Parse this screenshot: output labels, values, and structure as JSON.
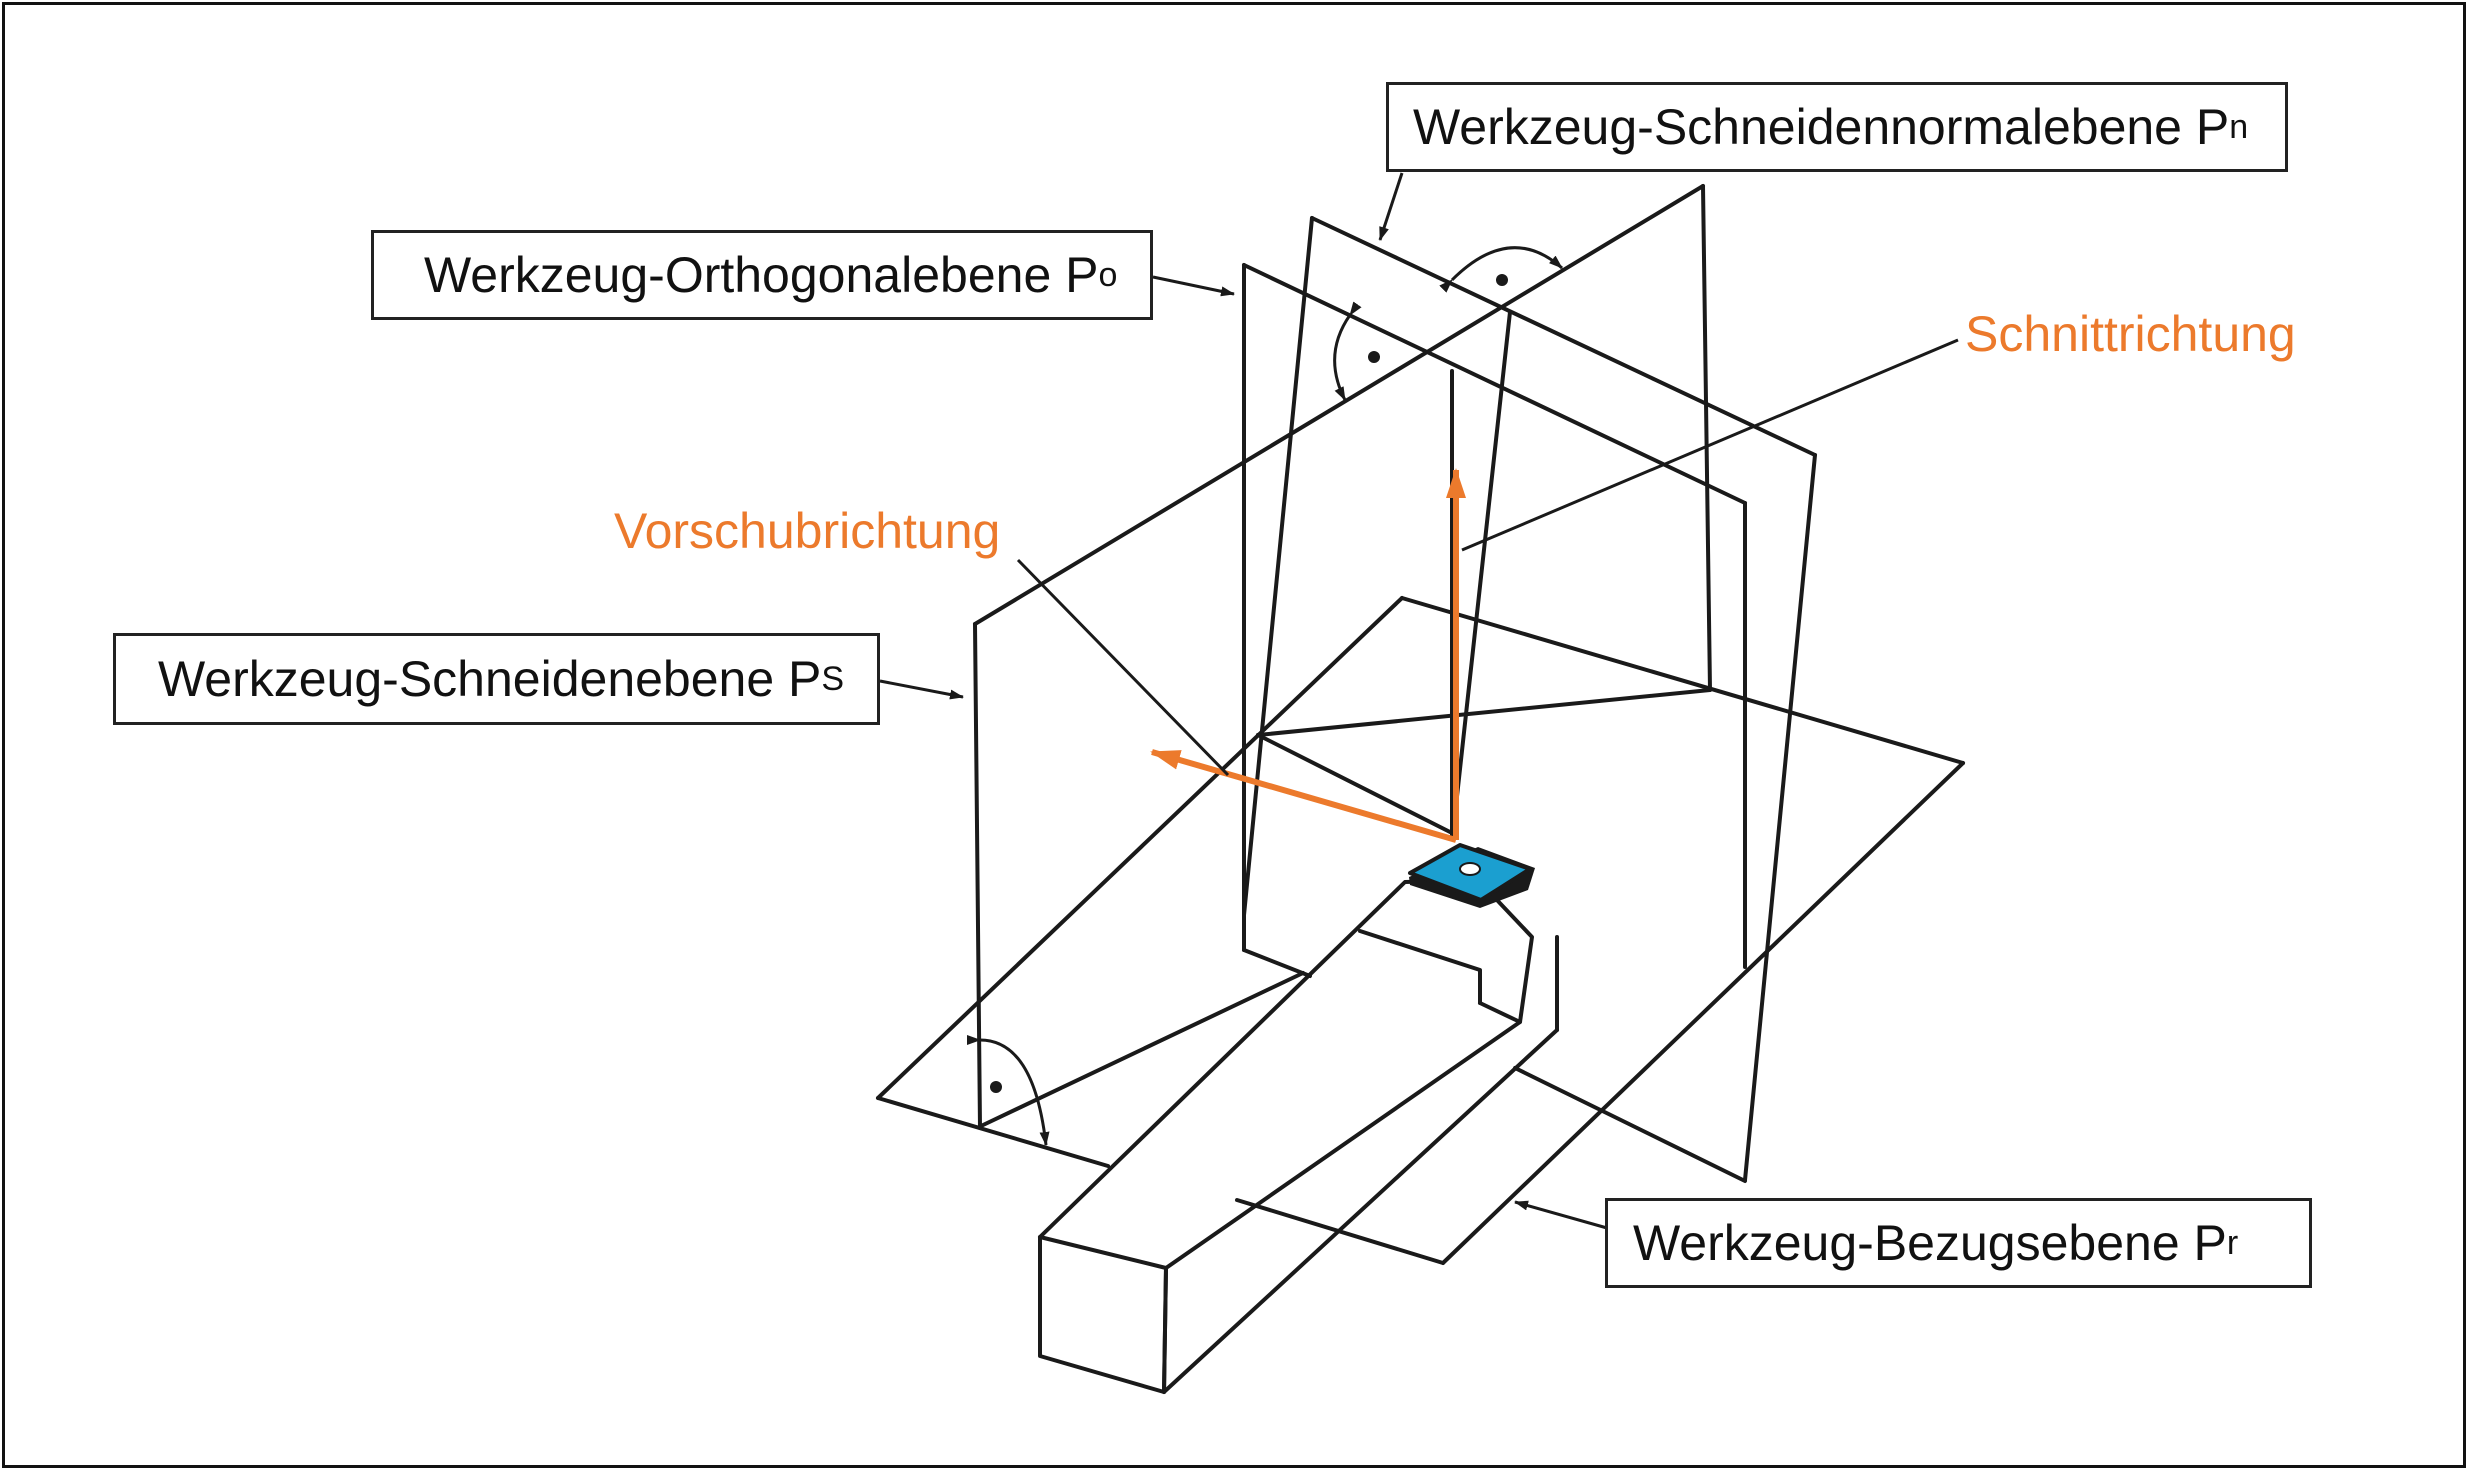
{
  "labels": {
    "pn": {
      "text": "Werkzeug-Schneidennormalebene P",
      "sub": "n"
    },
    "po": {
      "text": "Werkzeug-Orthogonalebene P",
      "sub": "o"
    },
    "ps": {
      "text": "Werkzeug-Schneidenebene P",
      "sub": "S"
    },
    "pr": {
      "text": "Werkzeug-Bezugsebene P",
      "sub": "r"
    },
    "schnitt": "Schnittrichtung",
    "vorschub": "Vorschubrichtung"
  },
  "colors": {
    "line": "#1a1a1a",
    "direction": "#ec7a2c",
    "insert": "#1b9fd0"
  }
}
